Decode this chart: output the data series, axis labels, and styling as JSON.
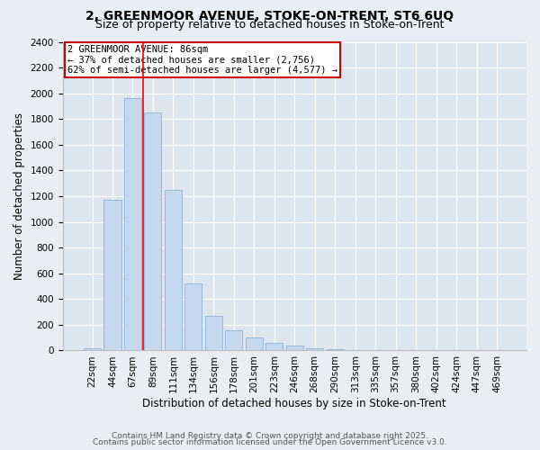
{
  "title_line1": "2, GREENMOOR AVENUE, STOKE-ON-TRENT, ST6 6UQ",
  "title_line2": "Size of property relative to detached houses in Stoke-on-Trent",
  "xlabel": "Distribution of detached houses by size in Stoke-on-Trent",
  "ylabel": "Number of detached properties",
  "bar_labels": [
    "22sqm",
    "44sqm",
    "67sqm",
    "89sqm",
    "111sqm",
    "134sqm",
    "156sqm",
    "178sqm",
    "201sqm",
    "223sqm",
    "246sqm",
    "268sqm",
    "290sqm",
    "313sqm",
    "335sqm",
    "357sqm",
    "380sqm",
    "402sqm",
    "424sqm",
    "447sqm",
    "469sqm"
  ],
  "bar_values": [
    15,
    1170,
    1960,
    1850,
    1250,
    520,
    270,
    155,
    100,
    60,
    40,
    20,
    10,
    5,
    3,
    2,
    1,
    0,
    0,
    0,
    0
  ],
  "bar_color": "#c5d8ee",
  "bar_edge_color": "#8ab4d8",
  "ylim": [
    0,
    2400
  ],
  "yticks": [
    0,
    200,
    400,
    600,
    800,
    1000,
    1200,
    1400,
    1600,
    1800,
    2000,
    2200,
    2400
  ],
  "property_label": "2 GREENMOOR AVENUE: 86sqm",
  "annotation_line1": "← 37% of detached houses are smaller (2,756)",
  "annotation_line2": "62% of semi-detached houses are larger (4,577) →",
  "red_line_bar_index": 2,
  "annotation_box_color": "#ffffff",
  "annotation_border_color": "#cc0000",
  "footer_line1": "Contains HM Land Registry data © Crown copyright and database right 2025.",
  "footer_line2": "Contains public sector information licensed under the Open Government Licence v3.0.",
  "bg_color": "#e8eef4",
  "plot_bg_color": "#dde6ef",
  "grid_color": "#ffffff",
  "title_fontsize": 10,
  "subtitle_fontsize": 9,
  "axis_label_fontsize": 8.5,
  "tick_fontsize": 7.5,
  "annotation_fontsize": 7.5,
  "footer_fontsize": 6.5
}
